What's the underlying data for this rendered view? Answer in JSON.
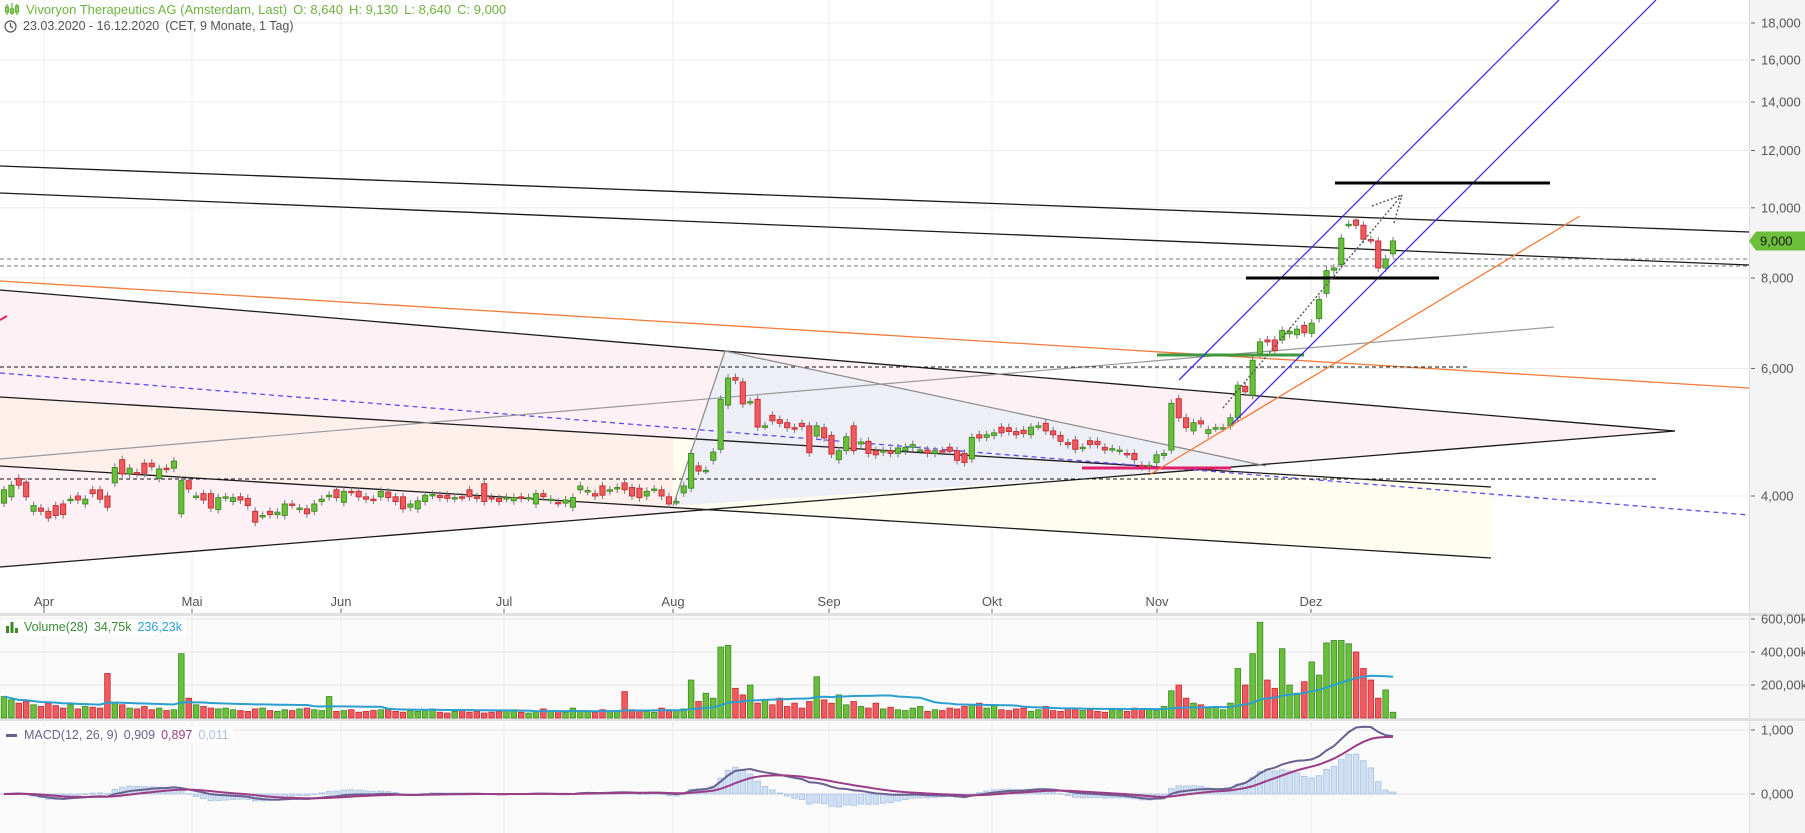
{
  "header": {
    "instrument": "Vivoryon Therapeutics AG (Amsterdam, Last)",
    "open": "O: 8,640",
    "high": "H: 9,130",
    "low": "L: 8,640",
    "close": "C: 9,000",
    "date_range": "23.03.2020 - 16.12.2020",
    "date_meta": "(CET, 9 Monate, 1 Tag)",
    "chart_icon": "candlestick-icon",
    "clock_icon": "clock-icon"
  },
  "volume_legend": {
    "label": "Volume(28)",
    "value": "34,75k",
    "ma_value": "236,23k",
    "icon": "bar-chart-icon"
  },
  "macd_legend": {
    "label": "MACD(12, 26, 9)",
    "macd": "0,909",
    "signal": "0,897",
    "histogram": "0,011",
    "icon": "line-icon"
  },
  "colors": {
    "up": "#6abf3a",
    "up_border": "#3d8a26",
    "down": "#f05a5e",
    "down_border": "#c42c34",
    "header_green": "#6cb33f",
    "price_tag": "#6cbf3a",
    "volume_ma": "#2b9fd0",
    "macd_line": "#6b5f8f",
    "signal_line": "#9b3c86",
    "histogram": "#cfe0f5",
    "channel_blue": "#3b2ee6",
    "trend_orange": "#f47a3a",
    "support_magenta": "#e0206a",
    "support_green": "#3f9a3f"
  },
  "chart_data": [
    {
      "type": "candlestick",
      "title": "Vivoryon Therapeutics AG (Amsterdam, Last)",
      "period": "23.03.2020 - 16.12.2020",
      "interval": "1 Tag",
      "y_scale": "log",
      "ylim": [
        3.3,
        19.0
      ],
      "y_ticks": [
        "18,000",
        "16,000",
        "14,000",
        "12,000",
        "10,000",
        "8,000",
        "6,000",
        "4,000"
      ],
      "y_tick_values": [
        18,
        16,
        14,
        12,
        10,
        8,
        6,
        4
      ],
      "x_labels": [
        "Apr",
        "Mai",
        "Jun",
        "Jul",
        "Aug",
        "Sep",
        "Okt",
        "Nov",
        "Dez"
      ],
      "last_price": "9,000",
      "last_price_value": 9.0,
      "grid": true,
      "open": [
        3.91,
        3.99,
        4.23,
        4.18,
        3.81,
        3.85,
        3.81,
        3.88,
        3.9,
        3.95,
        4.0,
        3.9,
        4.08,
        4.08,
        4.0,
        4.17,
        4.49,
        4.29,
        4.31,
        4.44,
        4.44,
        4.23,
        4.37,
        4.37,
        3.78,
        4.2,
        4.0,
        4.03,
        4.03,
        3.83,
        3.98,
        3.93,
        3.99,
        3.97,
        3.81,
        3.76,
        3.81,
        3.77,
        3.76,
        3.9,
        3.84,
        3.84,
        3.81,
        3.93,
        3.99,
        4.08,
        3.92,
        4.06,
        4.06,
        3.99,
        3.96,
        3.99,
        4.05,
        3.99,
        3.99,
        3.86,
        3.84,
        3.93,
        4.01,
        4.01,
        4.01,
        3.97,
        3.99,
        4.08,
        3.99,
        4.16,
        3.98,
        3.97,
        3.97,
        3.94,
        3.99,
        3.98,
        3.9,
        4.03,
        3.95,
        3.92,
        3.91,
        3.86,
        4.08,
        4.06,
        4.03,
        4.13,
        4.06,
        4.09,
        4.17,
        4.11,
        4.1,
        4.0,
        4.09,
        4.08,
        3.99,
        3.93,
        4.04,
        4.1,
        4.4,
        4.34,
        4.48,
        4.64,
        5.34,
        5.83,
        5.75,
        5.4,
        5.44,
        5.0,
        5.17,
        5.1,
        5.05,
        4.97,
        5.04,
        5.0,
        4.84,
        4.97,
        4.85,
        4.49,
        4.62,
        5.0,
        4.72,
        4.76,
        4.62,
        4.6,
        4.62,
        4.58,
        4.62,
        4.67,
        4.63,
        4.63,
        4.58,
        4.62,
        4.67,
        4.62,
        4.58,
        4.5,
        4.86,
        4.82,
        4.85,
        4.98,
        4.97,
        4.91,
        4.93,
        4.86,
        5.0,
        5.04,
        4.92,
        4.85,
        4.74,
        4.78,
        4.66,
        4.77,
        4.76,
        4.67,
        4.65,
        4.62,
        4.58,
        4.58,
        4.41,
        4.37,
        4.45,
        4.55,
        4.63,
        5.45,
        5.13,
        4.92,
        5.08,
        4.88,
        4.97,
        4.97,
        5.0,
        5.13,
        5.67,
        5.51,
        6.29,
        6.57,
        6.57,
        6.57,
        6.7,
        6.68,
        6.88,
        6.71,
        7.03,
        7.62,
        8.2,
        8.35,
        9.49,
        9.62,
        9.46,
        9.04,
        9.0,
        8.26,
        8.64
      ],
      "close": [
        4.08,
        4.14,
        4.14,
        3.99,
        3.88,
        3.81,
        3.73,
        3.76,
        3.77,
        3.96,
        3.95,
        3.96,
        4.03,
        3.96,
        3.86,
        4.38,
        4.29,
        4.37,
        4.3,
        4.3,
        4.39,
        4.36,
        4.36,
        4.47,
        4.2,
        4.09,
        4.0,
        3.95,
        3.85,
        3.98,
        3.99,
        3.98,
        3.95,
        3.88,
        3.68,
        3.76,
        3.77,
        3.8,
        3.9,
        3.89,
        3.85,
        3.78,
        3.9,
        3.96,
        4.01,
        3.98,
        4.06,
        4.05,
        3.99,
        3.96,
        3.95,
        4.06,
        3.98,
        3.93,
        3.84,
        3.9,
        3.94,
        4.01,
        4.02,
        3.98,
        3.97,
        3.98,
        3.98,
        3.99,
        3.97,
        3.93,
        3.97,
        3.93,
        3.98,
        3.98,
        3.97,
        3.98,
        4.03,
        3.99,
        3.96,
        3.91,
        3.95,
        3.98,
        4.13,
        4.07,
        4.0,
        4.01,
        4.08,
        4.11,
        4.08,
        4.0,
        3.98,
        4.06,
        4.09,
        4.0,
        3.9,
        3.93,
        4.13,
        4.58,
        4.33,
        4.34,
        4.6,
        5.44,
        5.82,
        5.78,
        5.36,
        5.4,
        4.98,
        5.0,
        5.08,
        5.04,
        4.97,
        4.95,
        4.99,
        4.59,
        5.0,
        4.81,
        4.57,
        4.62,
        4.83,
        4.62,
        4.75,
        4.58,
        4.56,
        4.62,
        4.58,
        4.66,
        4.67,
        4.71,
        4.63,
        4.58,
        4.62,
        4.61,
        4.61,
        4.48,
        4.45,
        4.82,
        4.81,
        4.86,
        4.89,
        4.89,
        4.91,
        4.86,
        4.88,
        4.98,
        5.0,
        4.92,
        4.86,
        4.76,
        4.71,
        4.64,
        4.67,
        4.71,
        4.71,
        4.63,
        4.65,
        4.63,
        4.57,
        4.49,
        4.39,
        4.41,
        4.56,
        4.58,
        5.37,
        5.13,
        4.97,
        5.05,
        5.03,
        4.94,
        4.97,
        4.97,
        5.13,
        5.69,
        5.57,
        6.16,
        6.53,
        6.53,
        6.35,
        6.77,
        6.75,
        6.8,
        6.72,
        6.93,
        7.47,
        8.19,
        8.26,
        9.08,
        9.49,
        9.46,
        9.05,
        9.02,
        8.26,
        8.5,
        9.0
      ]
    },
    {
      "type": "bar",
      "title": "Volume(28)",
      "unit": "k",
      "y_ticks": [
        "600,00k",
        "400,00k",
        "200,00k"
      ],
      "y_tick_values": [
        600,
        400,
        200
      ],
      "moving_average_period": 28,
      "values": [
        130,
        110,
        90,
        100,
        80,
        70,
        90,
        75,
        60,
        80,
        55,
        70,
        65,
        60,
        270,
        90,
        80,
        60,
        55,
        70,
        50,
        60,
        45,
        50,
        390,
        120,
        80,
        70,
        60,
        55,
        60,
        50,
        45,
        40,
        55,
        60,
        45,
        40,
        50,
        45,
        55,
        60,
        50,
        45,
        130,
        40,
        45,
        50,
        35,
        40,
        45,
        50,
        55,
        40,
        35,
        45,
        40,
        50,
        55,
        35,
        30,
        40,
        45,
        35,
        40,
        30,
        35,
        40,
        45,
        50,
        35,
        30,
        40,
        55,
        45,
        40,
        35,
        60,
        45,
        40,
        35,
        50,
        40,
        45,
        160,
        50,
        45,
        40,
        35,
        60,
        50,
        45,
        55,
        230,
        100,
        150,
        120,
        430,
        440,
        180,
        140,
        200,
        90,
        110,
        80,
        120,
        70,
        90,
        60,
        100,
        250,
        110,
        90,
        140,
        80,
        100,
        70,
        60,
        90,
        55,
        65,
        50,
        45,
        60,
        70,
        40,
        50,
        45,
        60,
        55,
        70,
        80,
        90,
        60,
        75,
        50,
        45,
        55,
        60,
        40,
        50,
        70,
        45,
        40,
        55,
        60,
        45,
        50,
        40,
        35,
        50,
        45,
        40,
        60,
        55,
        50,
        45,
        70,
        165,
        200,
        120,
        90,
        80,
        60,
        70,
        50,
        90,
        300,
        200,
        390,
        580,
        230,
        180,
        420,
        200,
        150,
        220,
        340,
        260,
        455,
        470,
        470,
        450,
        400,
        300,
        230,
        120,
        170,
        34.75
      ]
    },
    {
      "type": "line",
      "title": "MACD(12, 26, 9)",
      "params": [
        12,
        26,
        9
      ],
      "y_ticks": [
        "1,000",
        "0,000"
      ],
      "y_tick_values": [
        1,
        0
      ]
    }
  ]
}
